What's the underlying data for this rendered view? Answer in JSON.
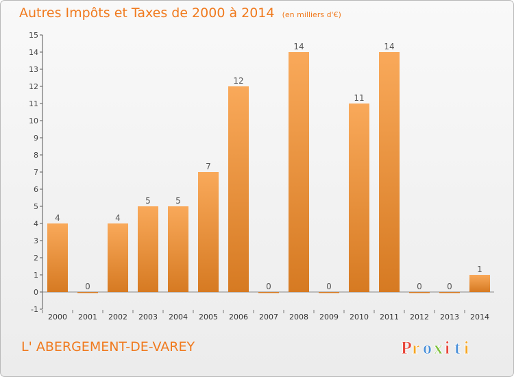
{
  "header": {
    "title": "Autres Impôts et Taxes de 2000 à 2014",
    "unit_note": "(en milliers d'€)"
  },
  "footer": {
    "commune": "L' ABERGEMENT-DE-VAREY",
    "brand": "Proxiti"
  },
  "colors": {
    "accent": "#f07a1e",
    "bar_light": "#f9a95a",
    "bar_dark": "#d67a22",
    "brand_letters": [
      "#e8463a",
      "#f6a623",
      "#4a90d9",
      "#7cbf3a",
      "#e8463a",
      "#4a90d9",
      "#f6a623"
    ]
  },
  "chart_data": {
    "type": "bar",
    "title": "Autres Impôts et Taxes de 2000 à 2014",
    "subtitle": "(en milliers d'€)",
    "xlabel": "",
    "ylabel": "",
    "categories": [
      "2000",
      "2001",
      "2002",
      "2003",
      "2004",
      "2005",
      "2006",
      "2007",
      "2008",
      "2009",
      "2010",
      "2011",
      "2012",
      "2013",
      "2014"
    ],
    "values": [
      4,
      0,
      4,
      5,
      5,
      7,
      12,
      0,
      14,
      0,
      11,
      14,
      0,
      0,
      1
    ],
    "data_labels": [
      "4",
      "0",
      "4",
      "5",
      "5",
      "7",
      "12",
      "0",
      "14",
      "0",
      "11",
      "14",
      "0",
      "0",
      "1"
    ],
    "ylim": [
      -1,
      15
    ],
    "yticks": [
      -1,
      0,
      1,
      2,
      3,
      4,
      5,
      6,
      7,
      8,
      9,
      10,
      11,
      12,
      13,
      14,
      15
    ],
    "ytick_labels": [
      "-1",
      "0",
      "1",
      "2",
      "3",
      "4",
      "5",
      "6",
      "7",
      "8",
      "9",
      "10",
      "11",
      "12",
      "13",
      "14",
      "15"
    ],
    "grid": false,
    "legend": "none"
  }
}
